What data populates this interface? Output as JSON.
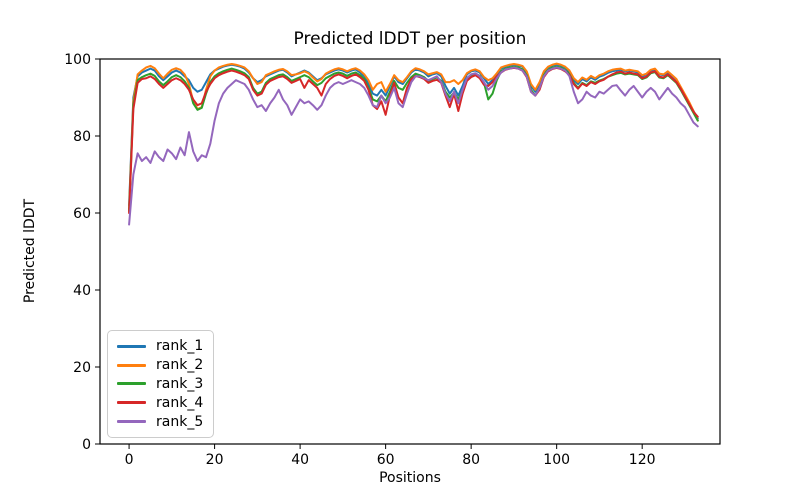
{
  "chart_data": {
    "type": "line",
    "title": "Predicted lDDT per position",
    "xlabel": "Positions",
    "ylabel": "Predicted lDDT",
    "xlim": [
      -6.8,
      138.2
    ],
    "ylim": [
      0,
      100
    ],
    "xticks": [
      0,
      20,
      40,
      60,
      80,
      100,
      120
    ],
    "yticks": [
      0,
      20,
      40,
      60,
      80,
      100
    ],
    "grid": false,
    "legend_position": "lower left",
    "x_start": 0,
    "x_step": 1,
    "series": [
      {
        "name": "rank_1",
        "color": "#1f77b4",
        "values": [
          62,
          90,
          95.5,
          96.5,
          97,
          97.5,
          97,
          95.5,
          94.5,
          95.5,
          96.5,
          97,
          96.5,
          95.5,
          94.5,
          92.5,
          91.5,
          92,
          94,
          96,
          97,
          97.5,
          98,
          98.3,
          98.5,
          98.3,
          98,
          97.5,
          96.5,
          95,
          94,
          94.5,
          95.5,
          96,
          96.5,
          97,
          97.2,
          96.5,
          95.5,
          96,
          96.5,
          97,
          96.5,
          95.5,
          94.5,
          95,
          96,
          96.5,
          97,
          97.3,
          97,
          96.5,
          97,
          97.3,
          96.5,
          95.5,
          93.5,
          91,
          90.5,
          92,
          90.5,
          93,
          95.5,
          94,
          93.5,
          95,
          96.5,
          97.3,
          97,
          96.5,
          95.5,
          96,
          96.3,
          95.5,
          93,
          91,
          92.5,
          90.5,
          93,
          96,
          96.8,
          97,
          96.5,
          95,
          93.5,
          94.5,
          96,
          97.5,
          98,
          98.3,
          98.5,
          98.3,
          98,
          96.5,
          93,
          91.5,
          93.5,
          96.5,
          97.8,
          98.3,
          98.5,
          98.3,
          97.8,
          96.5,
          94.5,
          93.5,
          94.8,
          94.2,
          95.2,
          94.6,
          95.4,
          95.8,
          96.4,
          96.8,
          97,
          97.2,
          96.8,
          97,
          96.8,
          96.5,
          95.5,
          96,
          97,
          97.3,
          96,
          95.8,
          96.5,
          95.5,
          94.5,
          92.5,
          90.5,
          88.5,
          86.5,
          84.5
        ]
      },
      {
        "name": "rank_2",
        "color": "#ff7f0e",
        "values": [
          61,
          89,
          96,
          97,
          97.8,
          98.2,
          97.6,
          96.2,
          95,
          96.2,
          97.2,
          97.6,
          97.2,
          96,
          93.5,
          89,
          87,
          87.5,
          92,
          95.5,
          97,
          97.8,
          98.2,
          98.5,
          98.7,
          98.5,
          98.2,
          97.8,
          96.8,
          95,
          93.5,
          94,
          95.8,
          96.3,
          96.8,
          97.2,
          97.4,
          96.8,
          95.8,
          96,
          96.3,
          96.8,
          96.3,
          95.2,
          94.2,
          94.8,
          96.2,
          96.8,
          97.3,
          97.6,
          97.3,
          96.8,
          97.3,
          97.6,
          97,
          96,
          94.5,
          92,
          93.5,
          94,
          91.5,
          93.5,
          95.8,
          94.5,
          94,
          95.3,
          96.8,
          97.6,
          97.3,
          96.8,
          96,
          96.3,
          96.6,
          96,
          94,
          94,
          94.5,
          93.5,
          94.5,
          96.3,
          97,
          97.3,
          96.8,
          95.3,
          94.5,
          95,
          96.3,
          97.8,
          98.2,
          98.5,
          98.7,
          98.5,
          98.2,
          96.8,
          93.5,
          92,
          94,
          96.8,
          98,
          98.5,
          98.8,
          98.5,
          98,
          97,
          95,
          94,
          95.2,
          94.6,
          95.6,
          95,
          95.8,
          96.2,
          96.8,
          97.2,
          97.4,
          97.5,
          97,
          97.2,
          97,
          96.8,
          95.8,
          96.2,
          97.2,
          97.5,
          96.2,
          96,
          96.8,
          95.8,
          94.8,
          92.8,
          90.8,
          88.8,
          86.5,
          84
        ]
      },
      {
        "name": "rank_3",
        "color": "#2ca02c",
        "values": [
          60.5,
          88,
          94.5,
          95.3,
          95.8,
          96.2,
          95.6,
          94.2,
          93.2,
          94.2,
          95.3,
          95.8,
          95.3,
          94.2,
          92.5,
          88.5,
          86.8,
          87.3,
          91,
          94,
          95.5,
          96.3,
          96.8,
          97.2,
          97.5,
          97.2,
          96.8,
          96.3,
          95.3,
          92.5,
          91,
          91.5,
          93.8,
          94.8,
          95.3,
          95.8,
          96,
          95.3,
          94.3,
          94.8,
          95.3,
          95.8,
          95.3,
          94.2,
          93.2,
          93.8,
          95,
          95.6,
          96.2,
          96.5,
          96.2,
          95.6,
          96.2,
          96.5,
          95.8,
          94.8,
          92.5,
          89.5,
          89,
          90.5,
          89,
          91.5,
          94.3,
          92.5,
          92,
          93.8,
          95.3,
          96.2,
          95.8,
          95.3,
          94.3,
          94.8,
          95.2,
          94.3,
          91.5,
          90,
          91.3,
          89.5,
          91.8,
          94.8,
          95.8,
          96.2,
          95.6,
          93.8,
          89.5,
          91,
          94.5,
          96.8,
          97.5,
          97.8,
          98,
          97.8,
          97.3,
          95.8,
          92,
          90.5,
          92.5,
          95.8,
          97.2,
          97.8,
          98,
          97.8,
          97.2,
          96,
          93.8,
          92.5,
          93.8,
          93.2,
          94.2,
          93.8,
          94.4,
          94.8,
          95.4,
          95.8,
          96.2,
          96.4,
          96,
          96.2,
          96,
          95.8,
          94.8,
          95.2,
          96.3,
          96.6,
          95.2,
          95,
          95.8,
          94.8,
          93.8,
          92,
          90,
          88,
          86,
          84
        ]
      },
      {
        "name": "rank_4",
        "color": "#d62728",
        "values": [
          60,
          87,
          93.8,
          94.8,
          95,
          95.5,
          94.8,
          93.5,
          92.5,
          93.5,
          94.5,
          95,
          94.5,
          93.5,
          92,
          89.5,
          88,
          88.5,
          91.5,
          93.5,
          95,
          95.8,
          96.3,
          96.7,
          97,
          96.7,
          96.3,
          95.8,
          94.8,
          92,
          90.5,
          91,
          93.3,
          94.3,
          94.8,
          95.3,
          95.5,
          94.8,
          93.8,
          94.3,
          94.8,
          92.5,
          94.5,
          93.5,
          92.5,
          90.5,
          93.5,
          94.8,
          95.6,
          96,
          95.6,
          95,
          95.6,
          96,
          95.3,
          94.3,
          92,
          88,
          87,
          89,
          85.5,
          90.5,
          93.8,
          90,
          88.5,
          92.5,
          94.8,
          95.6,
          95.3,
          94.8,
          93.8,
          94.3,
          94.6,
          93.8,
          90.5,
          87.5,
          91,
          86.5,
          91,
          94.3,
          95.3,
          95.8,
          95,
          93.3,
          93,
          94,
          95.5,
          96.5,
          97.2,
          97.5,
          97.7,
          97.5,
          97,
          95.3,
          91.5,
          90.5,
          92,
          95.3,
          96.8,
          97.4,
          97.7,
          97.4,
          96.8,
          95.8,
          93.5,
          92.3,
          93.6,
          93,
          94,
          93.5,
          94.2,
          94.6,
          95.4,
          96,
          96.5,
          96.7,
          96.2,
          96.5,
          96.2,
          96,
          95,
          95.4,
          96.5,
          96.8,
          95.4,
          95.2,
          96,
          95,
          94,
          92.3,
          90.3,
          88.3,
          86.3,
          85
        ]
      },
      {
        "name": "rank_5",
        "color": "#9467bd",
        "values": [
          57,
          70,
          75.5,
          73.5,
          74.5,
          73,
          76,
          74.5,
          73.5,
          76.5,
          75.5,
          74,
          77,
          75,
          81,
          76,
          73.5,
          75,
          74.5,
          78,
          84,
          88.5,
          91,
          92.5,
          93.5,
          94.5,
          94,
          93.5,
          92,
          89.5,
          87.5,
          88,
          86.5,
          88.5,
          90,
          92,
          89.5,
          88,
          85.5,
          87.5,
          89.5,
          88.5,
          89,
          88,
          86.8,
          88,
          90.5,
          92.5,
          93.5,
          94,
          93.5,
          94,
          94.5,
          94,
          93.5,
          92.5,
          90.5,
          88,
          87.5,
          90.5,
          88.5,
          90,
          92.5,
          88.5,
          87.5,
          91,
          94,
          95.5,
          95.5,
          95,
          94.5,
          95,
          95.5,
          94,
          91,
          89,
          91.5,
          88.5,
          92,
          95,
          96,
          96.3,
          95.5,
          94,
          92,
          93,
          95,
          96.5,
          97.3,
          97.5,
          97.8,
          97.5,
          97,
          95.5,
          91.5,
          90.5,
          92.5,
          95.5,
          97,
          97.5,
          97.8,
          97.5,
          97,
          95.5,
          91.5,
          88.5,
          89.5,
          91.5,
          90.5,
          90,
          91.5,
          91,
          92,
          93,
          93.2,
          91.8,
          90.5,
          92,
          93,
          91.5,
          90,
          91.5,
          92.5,
          91.5,
          89.5,
          91,
          92.5,
          91,
          90,
          88.5,
          87.5,
          85.5,
          83.5,
          82.5
        ]
      }
    ]
  }
}
